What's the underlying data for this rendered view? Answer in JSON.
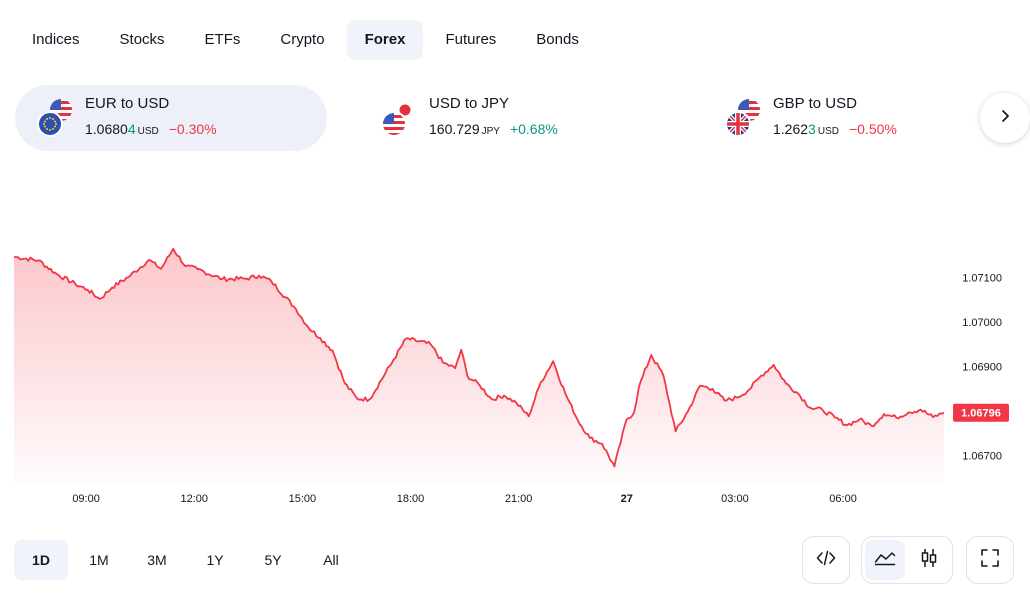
{
  "tabs": [
    {
      "label": "Indices"
    },
    {
      "label": "Stocks"
    },
    {
      "label": "ETFs"
    },
    {
      "label": "Crypto"
    },
    {
      "label": "Forex",
      "active": true
    },
    {
      "label": "Futures"
    },
    {
      "label": "Bonds"
    }
  ],
  "tickers": [
    {
      "name": "EUR to USD",
      "price_main": "1.0680",
      "price_last": "4",
      "currency": "USD",
      "change": "−0.30%",
      "direction": "neg",
      "active": true
    },
    {
      "name": "USD to JPY",
      "price_main": "160.729",
      "price_last": "",
      "currency": "JPY",
      "change": "+0.68%",
      "direction": "pos",
      "active": false
    },
    {
      "name": "GBP to USD",
      "price_main": "1.262",
      "price_last": "3",
      "currency": "USD",
      "change": "−0.50%",
      "direction": "neg",
      "active": false
    }
  ],
  "chart_data": {
    "type": "area",
    "x_tick_labels": [
      "09:00",
      "12:00",
      "15:00",
      "18:00",
      "21:00",
      "27",
      "03:00",
      "06:00"
    ],
    "x_tick_bold": [
      "27"
    ],
    "y_tick_labels": [
      "1.07100",
      "1.07000",
      "1.06900",
      "1.06700"
    ],
    "ylim": [
      1.0664,
      1.0732
    ],
    "last_price_label": "1.06796",
    "series": [
      {
        "color": "#f23645",
        "points": [
          [
            0,
            1.07147
          ],
          [
            2,
            1.07139
          ],
          [
            3.5,
            1.07108
          ],
          [
            5,
            1.07086
          ],
          [
            6,
            1.07073
          ],
          [
            7,
            1.07052
          ],
          [
            8,
            1.07078
          ],
          [
            9.5,
            1.07105
          ],
          [
            11,
            1.0714
          ],
          [
            12,
            1.0712
          ],
          [
            13,
            1.07165
          ],
          [
            14,
            1.07126
          ],
          [
            15,
            1.07119
          ],
          [
            17,
            1.07097
          ],
          [
            19,
            1.07098
          ],
          [
            20,
            1.07105
          ],
          [
            21,
            1.07092
          ],
          [
            23,
            1.0703
          ],
          [
            24,
            1.06989
          ],
          [
            25,
            1.06964
          ],
          [
            26,
            1.06936
          ],
          [
            27,
            1.06862
          ],
          [
            28,
            1.06828
          ],
          [
            29,
            1.06826
          ],
          [
            31,
            1.06916
          ],
          [
            32,
            1.06963
          ],
          [
            34,
            1.0695
          ],
          [
            35,
            1.06909
          ],
          [
            36,
            1.06896
          ],
          [
            36.5,
            1.06938
          ],
          [
            37,
            1.06879
          ],
          [
            38,
            1.06858
          ],
          [
            39,
            1.06826
          ],
          [
            40,
            1.06835
          ],
          [
            41,
            1.06818
          ],
          [
            42,
            1.06788
          ],
          [
            43,
            1.06865
          ],
          [
            44,
            1.06912
          ],
          [
            45,
            1.06839
          ],
          [
            46,
            1.0678
          ],
          [
            47,
            1.06739
          ],
          [
            48,
            1.06726
          ],
          [
            49,
            1.06675
          ],
          [
            50,
            1.06781
          ],
          [
            50.6,
            1.06796
          ],
          [
            51,
            1.06854
          ],
          [
            52,
            1.06926
          ],
          [
            53,
            1.0688
          ],
          [
            54,
            1.06754
          ],
          [
            55,
            1.06799
          ],
          [
            56,
            1.06857
          ],
          [
            57,
            1.0685
          ],
          [
            58,
            1.06823
          ],
          [
            59,
            1.0683
          ],
          [
            60,
            1.06848
          ],
          [
            61,
            1.0688
          ],
          [
            62,
            1.06904
          ],
          [
            63,
            1.06862
          ],
          [
            64,
            1.06839
          ],
          [
            65,
            1.06807
          ],
          [
            66,
            1.06802
          ],
          [
            67,
            1.06785
          ],
          [
            68,
            1.06768
          ],
          [
            69,
            1.06781
          ],
          [
            70,
            1.06766
          ],
          [
            71,
            1.06793
          ],
          [
            72,
            1.06785
          ],
          [
            73,
            1.06797
          ],
          [
            74,
            1.06803
          ],
          [
            75,
            1.06786
          ],
          [
            75.9,
            1.06796
          ]
        ]
      }
    ]
  },
  "ranges": [
    {
      "label": "1D",
      "active": true
    },
    {
      "label": "1M"
    },
    {
      "label": "3M"
    },
    {
      "label": "1Y"
    },
    {
      "label": "5Y"
    },
    {
      "label": "All"
    }
  ],
  "tools": {
    "embed_icon": "code-icon",
    "line_icon": "line-chart-icon",
    "candle_icon": "candlestick-icon",
    "fullscreen_icon": "fullscreen-icon"
  }
}
